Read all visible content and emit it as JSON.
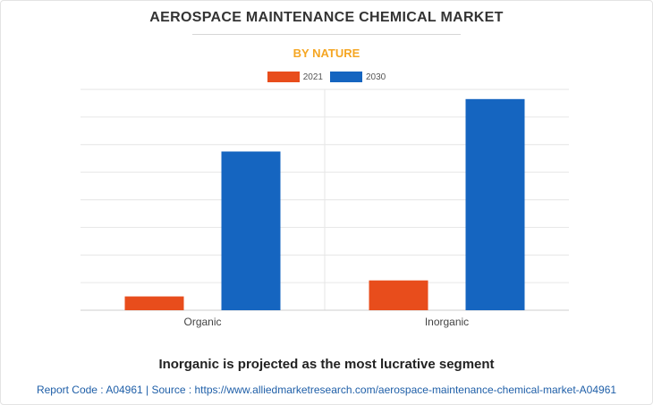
{
  "header": {
    "title": "AEROSPACE MAINTENANCE CHEMICAL MARKET",
    "subtitle": "BY NATURE"
  },
  "colors": {
    "subtitle": "#f5a623",
    "series_2021": "#e84d1c",
    "series_2030": "#1565c0",
    "grid": "#e6e6e6",
    "axis": "#cfcfcf"
  },
  "chart_data": {
    "type": "bar",
    "categories": [
      "Organic",
      "Inorganic"
    ],
    "series": [
      {
        "name": "2021",
        "values": [
          0.5,
          1.08
        ]
      },
      {
        "name": "2030",
        "values": [
          5.75,
          7.65
        ]
      }
    ],
    "ylim": [
      0,
      8
    ],
    "grid": true,
    "legend": "top-center",
    "xlabel": "",
    "ylabel": ""
  },
  "footer": {
    "tagline": "Inorganic is projected as the most lucrative segment",
    "source": "Report Code : A04961  |  Source : https://www.alliedmarketresearch.com/aerospace-maintenance-chemical-market-A04961"
  }
}
